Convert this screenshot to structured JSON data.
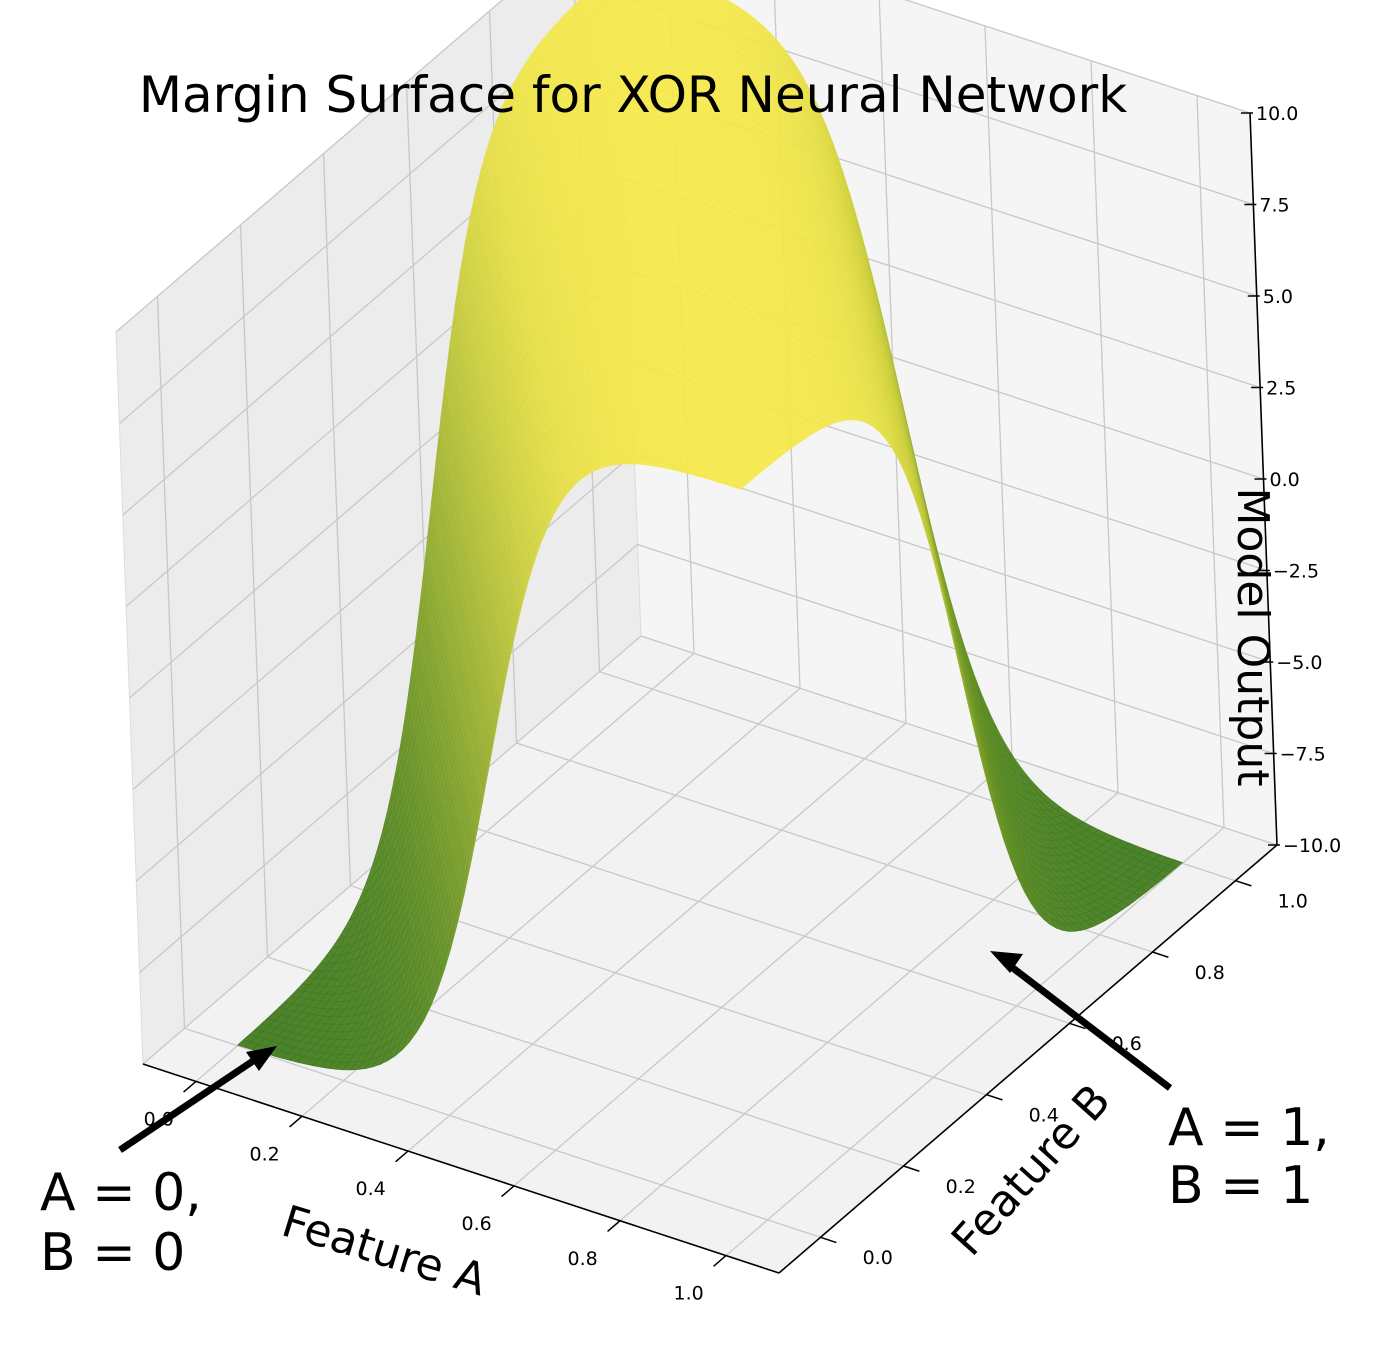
{
  "chart_data": {
    "type": "surface",
    "title": "Margin Surface for XOR Neural Network",
    "xlabel": "Feature A",
    "ylabel": "Feature B",
    "zlabel": "Model Output",
    "xlim": [
      -0.1,
      1.1
    ],
    "ylim": [
      -0.1,
      1.1
    ],
    "zlim": [
      -10,
      10
    ],
    "x_ticks": [
      "0.0",
      "0.2",
      "0.4",
      "0.6",
      "0.8",
      "1.0"
    ],
    "y_ticks": [
      "0.0",
      "0.2",
      "0.4",
      "0.6",
      "0.8",
      "1.0"
    ],
    "z_ticks": [
      "−10.0",
      "−7.5",
      "−5.0",
      "−2.5",
      "0.0",
      "2.5",
      "5.0",
      "7.5",
      "10.0"
    ],
    "surface": {
      "x_range": [
        0.0,
        1.0
      ],
      "y_range": [
        0.0,
        1.0
      ],
      "low_value": -10,
      "high_value": 10,
      "description_values": [
        {
          "A": 0,
          "B": 0,
          "output": -10
        },
        {
          "A": 0,
          "B": 1,
          "output": 10
        },
        {
          "A": 1,
          "B": 0,
          "output": 10
        },
        {
          "A": 1,
          "B": 1,
          "output": -10
        }
      ],
      "colormap_low": "#3f7a1c",
      "colormap_high": "#f5e84a"
    },
    "grid": true,
    "annotations": [
      {
        "lines": [
          "A = 0,",
          "B = 0"
        ],
        "points_to": {
          "A": 0,
          "B": 0
        }
      },
      {
        "lines": [
          "A = 1,",
          "B = 1"
        ],
        "points_to": {
          "A": 1,
          "B": 1
        }
      }
    ]
  }
}
